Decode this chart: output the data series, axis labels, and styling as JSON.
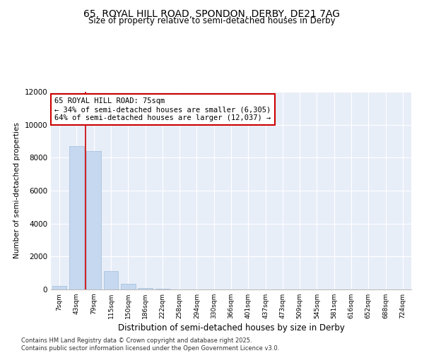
{
  "title_line1": "65, ROYAL HILL ROAD, SPONDON, DERBY, DE21 7AG",
  "title_line2": "Size of property relative to semi-detached houses in Derby",
  "xlabel": "Distribution of semi-detached houses by size in Derby",
  "ylabel": "Number of semi-detached properties",
  "categories": [
    "7sqm",
    "43sqm",
    "79sqm",
    "115sqm",
    "150sqm",
    "186sqm",
    "222sqm",
    "258sqm",
    "294sqm",
    "330sqm",
    "366sqm",
    "401sqm",
    "437sqm",
    "473sqm",
    "509sqm",
    "545sqm",
    "581sqm",
    "616sqm",
    "652sqm",
    "688sqm",
    "724sqm"
  ],
  "values": [
    200,
    8700,
    8400,
    1100,
    350,
    100,
    50,
    0,
    0,
    0,
    0,
    0,
    0,
    0,
    0,
    0,
    0,
    0,
    0,
    0,
    0
  ],
  "bar_color": "#c5d8f0",
  "bar_edge_color": "#a0bcd8",
  "vline_color": "#cc0000",
  "annotation_title": "65 ROYAL HILL ROAD: 75sqm",
  "annotation_line2": "← 34% of semi-detached houses are smaller (6,305)",
  "annotation_line3": "64% of semi-detached houses are larger (12,037) →",
  "annotation_box_edgecolor": "#cc0000",
  "ylim": [
    0,
    12000
  ],
  "yticks": [
    0,
    2000,
    4000,
    6000,
    8000,
    10000,
    12000
  ],
  "fig_facecolor": "#ffffff",
  "axes_facecolor": "#e8eef8",
  "footer_line1": "Contains HM Land Registry data © Crown copyright and database right 2025.",
  "footer_line2": "Contains public sector information licensed under the Open Government Licence v3.0."
}
